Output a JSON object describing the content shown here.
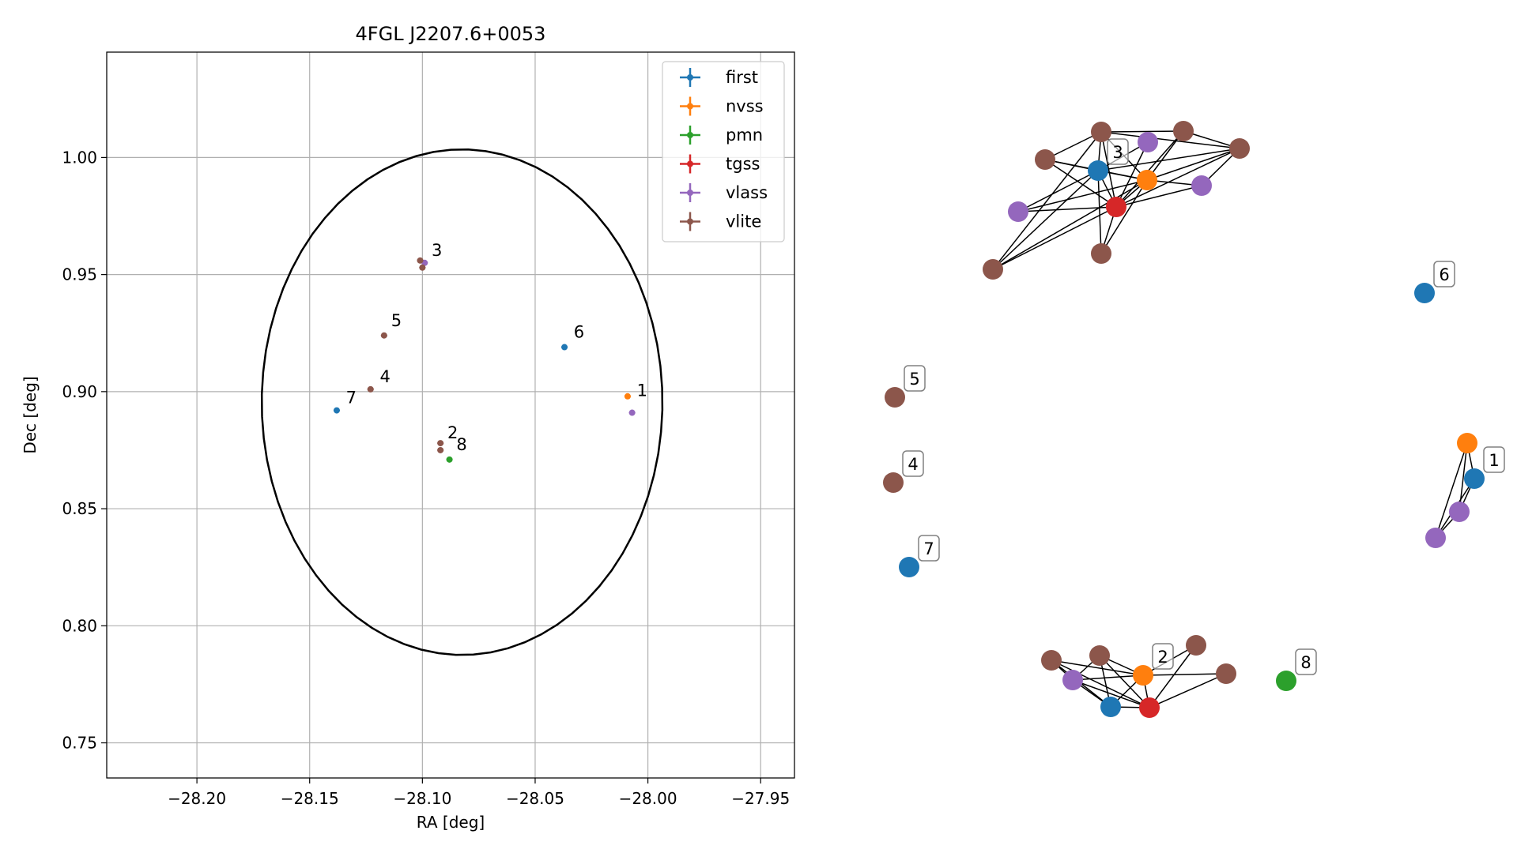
{
  "chart_data": [
    {
      "type": "scatter",
      "title": "4FGL J2207.6+0053",
      "xlabel": "RA [deg]",
      "ylabel": "Dec [deg]",
      "xlim": [
        -28.24,
        -27.935
      ],
      "ylim": [
        0.735,
        1.045
      ],
      "xticks": [
        -28.2,
        -28.15,
        -28.1,
        -28.05,
        -28.0,
        -27.95
      ],
      "xtick_labels": [
        "−28.20",
        "−28.15",
        "−28.10",
        "−28.05",
        "−28.00",
        "−27.95"
      ],
      "yticks": [
        0.75,
        0.8,
        0.85,
        0.9,
        0.95,
        1.0
      ],
      "ytick_labels": [
        "0.75",
        "0.80",
        "0.85",
        "0.90",
        "0.95",
        "1.00"
      ],
      "grid": true,
      "legend_position": "top-right",
      "series": [
        {
          "name": "first",
          "color": "#1f77b4",
          "points": [
            {
              "x": -28.037,
              "y": 0.919
            },
            {
              "x": -28.138,
              "y": 0.892
            }
          ]
        },
        {
          "name": "nvss",
          "color": "#ff7f0e",
          "points": [
            {
              "x": -28.009,
              "y": 0.898
            }
          ]
        },
        {
          "name": "pmn",
          "color": "#2ca02c",
          "points": [
            {
              "x": -28.088,
              "y": 0.871
            }
          ]
        },
        {
          "name": "tgss",
          "color": "#d62728",
          "points": []
        },
        {
          "name": "vlass",
          "color": "#9467bd",
          "points": [
            {
              "x": -28.007,
              "y": 0.891
            },
            {
              "x": -28.099,
              "y": 0.955
            }
          ]
        },
        {
          "name": "vlite",
          "color": "#8c564b",
          "points": [
            {
              "x": -28.101,
              "y": 0.956
            },
            {
              "x": -28.1,
              "y": 0.953
            },
            {
              "x": -28.117,
              "y": 0.924
            },
            {
              "x": -28.123,
              "y": 0.901
            },
            {
              "x": -28.092,
              "y": 0.878
            },
            {
              "x": -28.092,
              "y": 0.875
            }
          ]
        }
      ],
      "annotations": [
        {
          "text": "1",
          "x": -28.007,
          "y": 0.896
        },
        {
          "text": "2",
          "x": -28.091,
          "y": 0.878
        },
        {
          "text": "3",
          "x": -28.098,
          "y": 0.956
        },
        {
          "text": "4",
          "x": -28.121,
          "y": 0.902
        },
        {
          "text": "5",
          "x": -28.116,
          "y": 0.926
        },
        {
          "text": "6",
          "x": -28.035,
          "y": 0.921
        },
        {
          "text": "7",
          "x": -28.136,
          "y": 0.893
        },
        {
          "text": "8",
          "x": -28.087,
          "y": 0.873
        }
      ],
      "ellipse": {
        "ra_center": -28.0824,
        "dec_center": 0.8955,
        "ra_halfwidth": 0.0893,
        "dec_halfwidth": 0.1085,
        "angle_deg": 10
      }
    },
    {
      "type": "network",
      "nodes": [
        {
          "id": "a1",
          "cat": "vlite"
        },
        {
          "id": "a2",
          "cat": "vlite"
        },
        {
          "id": "a3",
          "cat": "vlite"
        },
        {
          "id": "a4",
          "cat": "vlite"
        },
        {
          "id": "a5",
          "cat": "vlite"
        },
        {
          "id": "a6",
          "cat": "vlite"
        },
        {
          "id": "a7",
          "cat": "vlass"
        },
        {
          "id": "a8",
          "cat": "vlass"
        },
        {
          "id": "a9",
          "cat": "vlass"
        },
        {
          "id": "a10",
          "cat": "first",
          "label": "3"
        },
        {
          "id": "a11",
          "cat": "nvss"
        },
        {
          "id": "a12",
          "cat": "tgss"
        },
        {
          "id": "b1",
          "cat": "first",
          "label": "6"
        },
        {
          "id": "c1",
          "cat": "vlite",
          "label": "5"
        },
        {
          "id": "c2",
          "cat": "vlite",
          "label": "4"
        },
        {
          "id": "c3",
          "cat": "first",
          "label": "7"
        },
        {
          "id": "d1",
          "cat": "nvss"
        },
        {
          "id": "d2",
          "cat": "first",
          "label": "1"
        },
        {
          "id": "d3",
          "cat": "vlass"
        },
        {
          "id": "d4",
          "cat": "vlass"
        },
        {
          "id": "e1",
          "cat": "vlite"
        },
        {
          "id": "e2",
          "cat": "vlite"
        },
        {
          "id": "e3",
          "cat": "vlite"
        },
        {
          "id": "e4",
          "cat": "vlite"
        },
        {
          "id": "e5",
          "cat": "vlass"
        },
        {
          "id": "e6",
          "cat": "nvss",
          "label": "2"
        },
        {
          "id": "e7",
          "cat": "first"
        },
        {
          "id": "e8",
          "cat": "tgss"
        },
        {
          "id": "f1",
          "cat": "pmn",
          "label": "8"
        }
      ],
      "edges": [
        [
          "a1",
          "a2"
        ],
        [
          "a1",
          "a10"
        ],
        [
          "a1",
          "a11"
        ],
        [
          "a1",
          "a12"
        ],
        [
          "a1",
          "a6"
        ],
        [
          "a1",
          "a3"
        ],
        [
          "a1",
          "a4"
        ],
        [
          "a2",
          "a10"
        ],
        [
          "a2",
          "a11"
        ],
        [
          "a2",
          "a12"
        ],
        [
          "a3",
          "a12"
        ],
        [
          "a3",
          "a11"
        ],
        [
          "a3",
          "a4"
        ],
        [
          "a4",
          "a12"
        ],
        [
          "a4",
          "a11"
        ],
        [
          "a4",
          "a10"
        ],
        [
          "a4",
          "a9"
        ],
        [
          "a5",
          "a12"
        ],
        [
          "a5",
          "a11"
        ],
        [
          "a5",
          "a10"
        ],
        [
          "a6",
          "a12"
        ],
        [
          "a6",
          "a11"
        ],
        [
          "a6",
          "a10"
        ],
        [
          "a7",
          "a12"
        ],
        [
          "a7",
          "a10"
        ],
        [
          "a8",
          "a12"
        ],
        [
          "a8",
          "a11"
        ],
        [
          "a8",
          "a10"
        ],
        [
          "a9",
          "a12"
        ],
        [
          "a9",
          "a11"
        ],
        [
          "a10",
          "a11"
        ],
        [
          "a10",
          "a12"
        ],
        [
          "a11",
          "a12"
        ],
        [
          "d1",
          "d2"
        ],
        [
          "d1",
          "d3"
        ],
        [
          "d1",
          "d4"
        ],
        [
          "d2",
          "d3"
        ],
        [
          "d2",
          "d4"
        ],
        [
          "d3",
          "d4"
        ],
        [
          "e1",
          "e5"
        ],
        [
          "e1",
          "e7"
        ],
        [
          "e1",
          "e8"
        ],
        [
          "e1",
          "e6"
        ],
        [
          "e2",
          "e5"
        ],
        [
          "e2",
          "e7"
        ],
        [
          "e2",
          "e8"
        ],
        [
          "e2",
          "e6"
        ],
        [
          "e3",
          "e8"
        ],
        [
          "e3",
          "e6"
        ],
        [
          "e4",
          "e8"
        ],
        [
          "e4",
          "e6"
        ],
        [
          "e5",
          "e7"
        ],
        [
          "e5",
          "e8"
        ],
        [
          "e5",
          "e6"
        ],
        [
          "e6",
          "e7"
        ],
        [
          "e6",
          "e8"
        ],
        [
          "e7",
          "e8"
        ]
      ]
    }
  ],
  "colors": {
    "first": "#1f77b4",
    "nvss": "#ff7f0e",
    "pmn": "#2ca02c",
    "tgss": "#d62728",
    "vlass": "#9467bd",
    "vlite": "#8c564b",
    "grid": "#b0b0b0",
    "edge": "#000000",
    "label_box": "#808080"
  }
}
